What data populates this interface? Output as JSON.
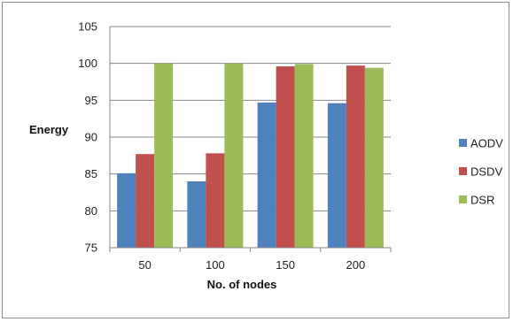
{
  "chart_data": {
    "type": "bar",
    "categories": [
      "50",
      "100",
      "150",
      "200"
    ],
    "series": [
      {
        "name": "AODV",
        "values": [
          85.1,
          84.0,
          94.7,
          94.6
        ],
        "color": "#4f81bd"
      },
      {
        "name": "DSDV",
        "values": [
          87.7,
          87.8,
          99.6,
          99.7
        ],
        "color": "#c0504d"
      },
      {
        "name": "DSR",
        "values": [
          100.0,
          100.0,
          99.9,
          99.4
        ],
        "color": "#9bbb59"
      }
    ],
    "title": "",
    "xlabel": "No. of nodes",
    "ylabel": "Energy",
    "ylim": [
      75,
      105
    ],
    "yticks": [
      75,
      80,
      85,
      90,
      95,
      100,
      105
    ],
    "grid": true,
    "legend_position": "right"
  }
}
